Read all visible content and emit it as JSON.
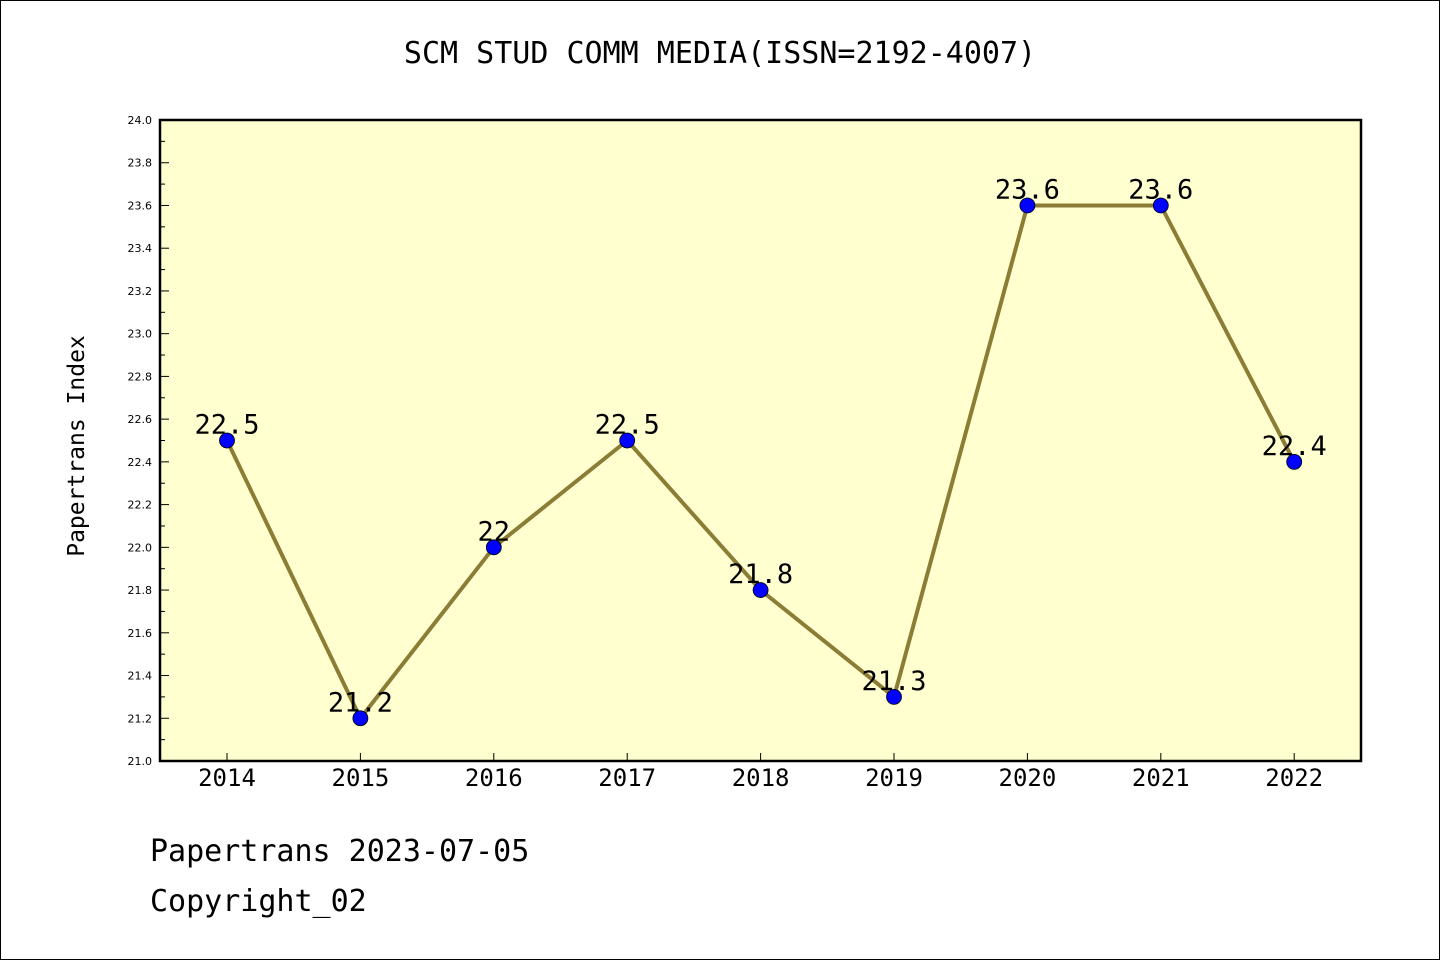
{
  "chart_data": {
    "type": "line",
    "title": "SCM STUD COMM MEDIA(ISSN=2192-4007)",
    "ylabel": "Papertrans Index",
    "xlabel": "",
    "categories": [
      "2014",
      "2015",
      "2016",
      "2017",
      "2018",
      "2019",
      "2020",
      "2021",
      "2022"
    ],
    "values": [
      22.5,
      21.2,
      22.0,
      22.5,
      21.8,
      21.3,
      23.6,
      23.6,
      22.4
    ],
    "data_labels": [
      "22.5",
      "21.2",
      "22",
      "22.5",
      "21.8",
      "21.3",
      "23.6",
      "23.6",
      "22.4"
    ],
    "ylim": [
      21.0,
      24.0
    ],
    "y_ticks": [
      "21.0",
      "21.2",
      "21.4",
      "21.6",
      "21.8",
      "22.0",
      "22.2",
      "22.4",
      "22.6",
      "22.8",
      "23.0",
      "23.2",
      "23.4",
      "23.6",
      "23.8",
      "24.0"
    ],
    "grid": false,
    "colors": {
      "plot_background": "#ffffd0",
      "line": "#8b7d35",
      "marker": "#0000ff"
    }
  },
  "footer": {
    "line1": "Papertrans 2023-07-05",
    "line2": "Copyright_02"
  }
}
